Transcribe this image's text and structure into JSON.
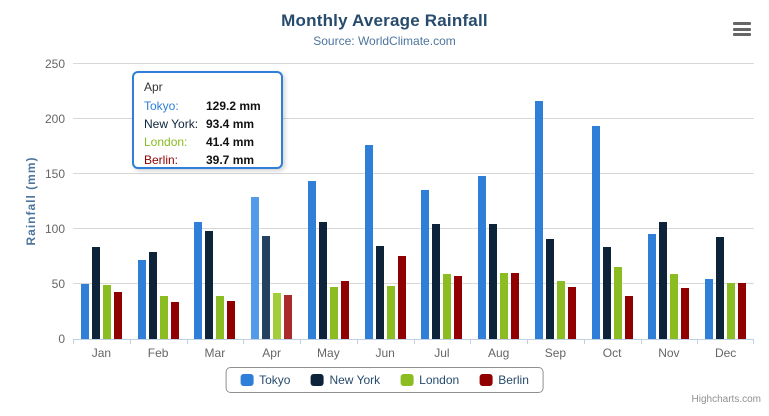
{
  "chart": {
    "title": "Monthly Average Rainfall",
    "subtitle": "Source: WorldClimate.com",
    "credits": "Highcharts.com"
  },
  "icons": {
    "context_menu": "hamburger-icon"
  },
  "chart_data": {
    "type": "bar",
    "title": "Monthly Average Rainfall",
    "subtitle": "Source: WorldClimate.com",
    "xlabel": "",
    "ylabel": "Rainfall (mm)",
    "ylim": [
      0,
      250
    ],
    "yticks": [
      0,
      50,
      100,
      150,
      200,
      250
    ],
    "grid": true,
    "legend_position": "bottom",
    "categories": [
      "Jan",
      "Feb",
      "Mar",
      "Apr",
      "May",
      "Jun",
      "Jul",
      "Aug",
      "Sep",
      "Oct",
      "Nov",
      "Dec"
    ],
    "hovered_category_index": 3,
    "series": [
      {
        "name": "Tokyo",
        "color": "#2f7ed8",
        "hover_color": "#539be8",
        "values": [
          49.9,
          71.5,
          106.4,
          129.2,
          144.0,
          176.0,
          135.6,
          148.5,
          216.4,
          194.1,
          95.6,
          54.4
        ]
      },
      {
        "name": "New York",
        "color": "#0d233a",
        "hover_color": "#24415f",
        "values": [
          83.6,
          78.8,
          98.5,
          93.4,
          106.0,
          84.5,
          105.0,
          104.3,
          91.2,
          83.5,
          106.6,
          92.3
        ]
      },
      {
        "name": "London",
        "color": "#8bbc21",
        "hover_color": "#a4cd3a",
        "values": [
          48.9,
          38.8,
          39.3,
          41.4,
          47.0,
          48.3,
          59.0,
          59.6,
          52.4,
          65.2,
          59.3,
          51.2
        ]
      },
      {
        "name": "Berlin",
        "color": "#910000",
        "hover_color": "#a82a2a",
        "values": [
          42.4,
          33.2,
          34.5,
          39.7,
          52.6,
          75.5,
          57.4,
          60.4,
          47.6,
          39.1,
          46.8,
          51.1
        ]
      }
    ]
  },
  "tooltip": {
    "header": "Apr",
    "rows": [
      {
        "label": "Tokyo:",
        "value": "129.2 mm",
        "color": "#2f7ed8"
      },
      {
        "label": "New York:",
        "value": "93.4 mm",
        "color": "#0d233a"
      },
      {
        "label": "London:",
        "value": "41.4 mm",
        "color": "#8bbc21"
      },
      {
        "label": "Berlin:",
        "value": "39.7 mm",
        "color": "#910000"
      }
    ]
  }
}
